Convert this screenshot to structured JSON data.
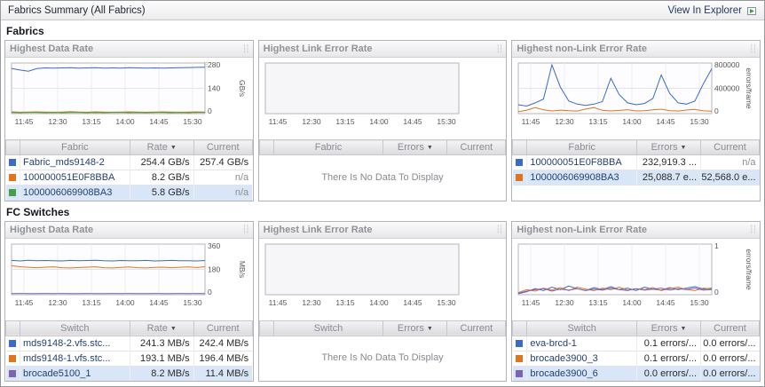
{
  "header": {
    "title": "Fabrics Summary (All Fabrics)",
    "explorer_link": "View In Explorer"
  },
  "icons": {
    "sort_desc": "▼",
    "grip": "┆┆",
    "chart_options": "⠿"
  },
  "sections": [
    {
      "title": "Fabrics",
      "panels": [
        {
          "title": "Highest Data Rate",
          "chart": {
            "type": "line",
            "x_ticks": [
              "11:45",
              "12:30",
              "13:15",
              "14:00",
              "14:45",
              "15:30"
            ],
            "ylim": [
              0,
              280
            ],
            "y_ticks": [
              {
                "v": 0,
                "label": "0"
              },
              {
                "v": 140,
                "label": "140"
              },
              {
                "v": 280,
                "label": "280"
              }
            ],
            "unit": "GB/s",
            "series": [
              {
                "name": "Fabric_mds9148-2",
                "color": "#3a6bc9",
                "values": [
                  250,
                  241,
                  235,
                  249,
                  253,
                  252,
                  253,
                  254,
                  252,
                  253,
                  254,
                  252,
                  253,
                  252,
                  254,
                  253,
                  252,
                  253,
                  252,
                  253,
                  254,
                  255,
                  256,
                  257
                ]
              },
              {
                "name": "100000051E0F8BBA",
                "color": "#e0751e",
                "values": [
                  10,
                  8,
                  9,
                  10,
                  9,
                  8,
                  9,
                  11,
                  9,
                  8,
                  10,
                  9,
                  8,
                  9,
                  10,
                  9,
                  8,
                  9,
                  10,
                  9,
                  8,
                  9,
                  10,
                  9
                ]
              },
              {
                "name": "1000006069908BA3",
                "color": "#44a044",
                "values": [
                  6,
                  5,
                  6,
                  6,
                  5,
                  6,
                  5,
                  6,
                  6,
                  5,
                  6,
                  5,
                  6,
                  6,
                  5,
                  6,
                  5,
                  6,
                  6,
                  5,
                  6,
                  5,
                  6,
                  6
                ]
              }
            ]
          },
          "table": {
            "columns": [
              "Fabric",
              "Rate",
              "Current"
            ],
            "rows": [
              {
                "color": "#3a6bc9",
                "name": "Fabric_mds9148-2",
                "value": "254.4 GB/s",
                "current": "257.4 GB/s"
              },
              {
                "color": "#e0751e",
                "name": "100000051E0F8BBA",
                "value": "8.2 GB/s",
                "current": "n/a"
              },
              {
                "color": "#44a044",
                "name": "1000006069908BA3",
                "value": "5.8 GB/s",
                "current": "n/a"
              }
            ]
          }
        },
        {
          "title": "Highest Link Error Rate",
          "chart": {
            "type": "line",
            "x_ticks": [
              "11:45",
              "12:30",
              "13:15",
              "14:00",
              "14:45",
              "15:30"
            ],
            "ylim": [
              0,
              1
            ],
            "y_ticks": [],
            "unit": "",
            "series": []
          },
          "table": {
            "columns": [
              "Fabric",
              "Errors",
              "Current"
            ],
            "no_data": "There Is No Data To Display"
          }
        },
        {
          "title": "Highest non-Link Error Rate",
          "chart": {
            "type": "line",
            "x_ticks": [
              "11:45",
              "12:30",
              "13:15",
              "14:00",
              "14:45",
              "15:30"
            ],
            "ylim": [
              0,
              800000
            ],
            "y_ticks": [
              {
                "v": 0,
                "label": "0"
              },
              {
                "v": 400000,
                "label": "400000"
              },
              {
                "v": 800000,
                "label": "800000"
              }
            ],
            "unit": "errors/frame",
            "series": [
              {
                "name": "100000051E0F8BBA",
                "color": "#3a6bc9",
                "values": [
                  140000,
                  120000,
                  170000,
                  230000,
                  770000,
                  420000,
                  200000,
                  150000,
                  130000,
                  150000,
                  190000,
                  560000,
                  300000,
                  170000,
                  140000,
                  160000,
                  240000,
                  610000,
                  320000,
                  170000,
                  150000,
                  200000,
                  470000,
                  710000
                ]
              },
              {
                "name": "1000006069908BA3",
                "color": "#e0751e",
                "values": [
                  30000,
                  55000,
                  95000,
                  60000,
                  42000,
                  55000,
                  46000,
                  40000,
                  72000,
                  95000,
                  52000,
                  42000,
                  50000,
                  62000,
                  42000,
                  46000,
                  60000,
                  70000,
                  46000,
                  40000,
                  56000,
                  66000,
                  44000,
                  38000
                ]
              }
            ]
          },
          "table": {
            "columns": [
              "Fabric",
              "Errors",
              "Current"
            ],
            "rows": [
              {
                "color": "#3a6bc9",
                "name": "100000051E0F8BBA",
                "value": "232,919.3 ...",
                "current": "n/a"
              },
              {
                "color": "#e0751e",
                "name": "1000006069908BA3",
                "value": "25,088.7 e...",
                "current": "52,568.0 e..."
              }
            ]
          }
        }
      ]
    },
    {
      "title": "FC Switches",
      "panels": [
        {
          "title": "Highest Data Rate",
          "chart": {
            "type": "line",
            "x_ticks": [
              "11:45",
              "12:30",
              "13:15",
              "14:00",
              "14:45",
              "15:30"
            ],
            "ylim": [
              0,
              360
            ],
            "y_ticks": [
              {
                "v": 0,
                "label": "0"
              },
              {
                "v": 180,
                "label": "180"
              },
              {
                "v": 360,
                "label": "360"
              }
            ],
            "unit": "MB/s",
            "series": [
              {
                "name": "mds9148-2.vfs.stc...",
                "color": "#3a6bc9",
                "values": [
                  244,
                  240,
                  245,
                  241,
                  243,
                  242,
                  240,
                  244,
                  241,
                  243,
                  245,
                  241,
                  240,
                  243,
                  242,
                  241,
                  244,
                  240,
                  242,
                  244,
                  241,
                  242,
                  240,
                  243
                ]
              },
              {
                "name": "mds9148-1.vfs.stc...",
                "color": "#e0751e",
                "values": [
                  206,
                  199,
                  195,
                  192,
                  196,
                  198,
                  192,
                  190,
                  193,
                  196,
                  198,
                  192,
                  190,
                  194,
                  197,
                  192,
                  190,
                  194,
                  196,
                  192,
                  195,
                  197,
                  193,
                  199
                ]
              },
              {
                "name": "brocade5100_1",
                "color": "#7e62b5",
                "values": [
                  8,
                  9,
                  8,
                  8,
                  9,
                  8,
                  9,
                  8,
                  8,
                  9,
                  8,
                  8,
                  9,
                  8,
                  9,
                  8,
                  8,
                  9,
                  8,
                  8,
                  9,
                  8,
                  9,
                  8
                ]
              }
            ]
          },
          "table": {
            "columns": [
              "Switch",
              "Rate",
              "Current"
            ],
            "rows": [
              {
                "color": "#3a6bc9",
                "name": "mds9148-2.vfs.stc...",
                "value": "241.3 MB/s",
                "current": "242.4 MB/s"
              },
              {
                "color": "#e0751e",
                "name": "mds9148-1.vfs.stc...",
                "value": "193.1 MB/s",
                "current": "196.4 MB/s"
              },
              {
                "color": "#7e62b5",
                "name": "brocade5100_1",
                "value": "8.2 MB/s",
                "current": "11.4 MB/s"
              }
            ]
          }
        },
        {
          "title": "Highest Link Error Rate",
          "chart": {
            "type": "line",
            "x_ticks": [
              "11:45",
              "12:30",
              "13:15",
              "14:00",
              "14:45",
              "15:30"
            ],
            "ylim": [
              0,
              1
            ],
            "y_ticks": [],
            "unit": "",
            "series": []
          },
          "table": {
            "columns": [
              "Switch",
              "Errors",
              "Current"
            ],
            "no_data": "There Is No Data To Display"
          }
        },
        {
          "title": "Highest non-Link Error Rate",
          "chart": {
            "type": "line",
            "x_ticks": [
              "11:45",
              "12:30",
              "13:15",
              "14:00",
              "14:45",
              "15:30"
            ],
            "ylim": [
              0,
              1
            ],
            "y_ticks": [
              {
                "v": 0,
                "label": "0"
              },
              {
                "v": 1,
                "label": "1"
              }
            ],
            "unit": "errors/frame",
            "series": [
              {
                "name": "eva-brcd-1",
                "color": "#3a6bc9",
                "values": [
                  0.02,
                  0.06,
                  0.12,
                  0.08,
                  0.15,
                  0.1,
                  0.17,
                  0.12,
                  0.08,
                  0.14,
                  0.1,
                  0.16,
                  0.1,
                  0.13,
                  0.08,
                  0.15,
                  0.11,
                  0.09,
                  0.14,
                  0.1,
                  0.13,
                  0.16,
                  0.11,
                  0.13
                ]
              },
              {
                "name": "brocade3900_3",
                "color": "#e0751e",
                "values": [
                  0.04,
                  0.1,
                  0.07,
                  0.13,
                  0.09,
                  0.14,
                  0.08,
                  0.15,
                  0.11,
                  0.08,
                  0.13,
                  0.1,
                  0.15,
                  0.09,
                  0.12,
                  0.1,
                  0.14,
                  0.08,
                  0.12,
                  0.15,
                  0.1,
                  0.08,
                  0.13,
                  0.11
                ]
              },
              {
                "name": "brocade3900_6",
                "color": "#7e62b5",
                "values": [
                  0.03,
                  0.07,
                  0.1,
                  0.12,
                  0.07,
                  0.11,
                  0.09,
                  0.12,
                  0.08,
                  0.11,
                  0.09,
                  0.13,
                  0.1,
                  0.08,
                  0.12,
                  0.09,
                  0.11,
                  0.13,
                  0.09,
                  0.12,
                  0.1,
                  0.13,
                  0.09,
                  0.1
                ]
              }
            ]
          },
          "table": {
            "columns": [
              "Switch",
              "Errors",
              "Current"
            ],
            "rows": [
              {
                "color": "#3a6bc9",
                "name": "eva-brcd-1",
                "value": "0.1 errors/...",
                "current": "0.0 errors/..."
              },
              {
                "color": "#e0751e",
                "name": "brocade3900_3",
                "value": "0.1 errors/...",
                "current": "0.0 errors/..."
              },
              {
                "color": "#7e62b5",
                "name": "brocade3900_6",
                "value": "0.0 errors/...",
                "current": "0.0 errors/..."
              }
            ]
          }
        }
      ]
    }
  ]
}
